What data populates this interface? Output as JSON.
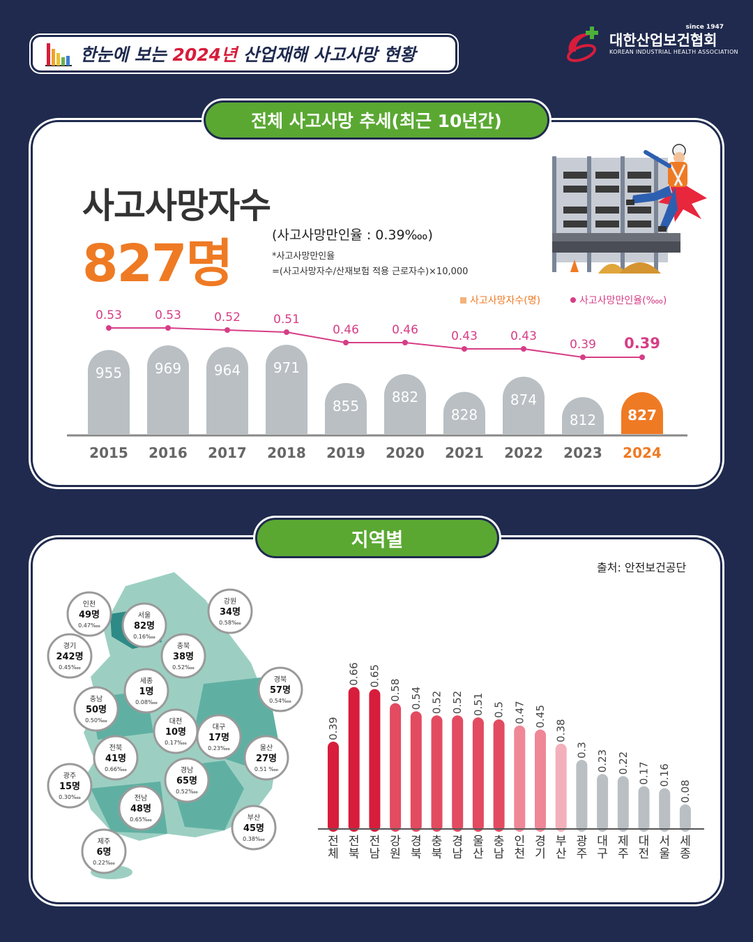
{
  "header": {
    "title_pre": "한눈에 보는 ",
    "title_year": "2024년",
    "title_post": " 산업재해 사고사망 현황",
    "logo_since": "since 1947",
    "logo_name": "대한산업보건협회",
    "logo_en": "KOREAN INDUSTRIAL HEALTH ASSOCIATION"
  },
  "section1": {
    "pill": "전체 사고사망 추세(최근 10년간)",
    "big_label": "사고사망자수",
    "big_value": "827명",
    "rate": "(사고사망만인율 : 0.39‱)",
    "note1": "*사고사망만인율",
    "note2": "=(사고사망자수/산재보험 적용 근로자수)×10,000",
    "legend_bar": "사고사망자수(명)",
    "legend_line": "사고사망만인율(‱)"
  },
  "section2": {
    "pill": "지역별",
    "source": "출처: 안전보건공단"
  },
  "colors": {
    "navy": "#1f2a4e",
    "orange": "#ef7a24",
    "gray_bar": "#b9bfc3",
    "line_pink": "#d63d86",
    "green": "#5aa832",
    "map_light": "#9ccfc2",
    "map_dark": "#2e8a86"
  },
  "chart_data": [
    {
      "type": "bar",
      "categories": [
        "2015",
        "2016",
        "2017",
        "2018",
        "2019",
        "2020",
        "2021",
        "2022",
        "2023",
        "2024"
      ],
      "series": [
        {
          "name": "사고사망자수(명)",
          "values": [
            955,
            969,
            964,
            971,
            855,
            882,
            828,
            874,
            812,
            827
          ]
        },
        {
          "name": "사고사망만인율(‱)",
          "values": [
            0.53,
            0.53,
            0.52,
            0.51,
            0.46,
            0.46,
            0.43,
            0.43,
            0.39,
            0.39
          ]
        }
      ],
      "highlight": "2024"
    },
    {
      "type": "bar",
      "categories": [
        "전체",
        "전북",
        "전남",
        "강원",
        "경북",
        "충북",
        "경남",
        "울산",
        "충남",
        "인천",
        "경기",
        "부산",
        "광주",
        "대구",
        "제주",
        "대전",
        "서울",
        "세종"
      ],
      "values": [
        0.39,
        0.66,
        0.65,
        0.58,
        0.54,
        0.52,
        0.52,
        0.51,
        0.5,
        0.47,
        0.45,
        0.38,
        0.3,
        0.23,
        0.22,
        0.17,
        0.16,
        0.08
      ]
    },
    {
      "type": "table",
      "regions": [
        {
          "name": "인천",
          "deaths": "49명",
          "rate": "0.47‱"
        },
        {
          "name": "서울",
          "deaths": "82명",
          "rate": "0.16‱"
        },
        {
          "name": "강원",
          "deaths": "34명",
          "rate": "0.58‱"
        },
        {
          "name": "경기",
          "deaths": "242명",
          "rate": "0.45‱"
        },
        {
          "name": "충북",
          "deaths": "38명",
          "rate": "0.52‱"
        },
        {
          "name": "세종",
          "deaths": "1명",
          "rate": "0.08‱"
        },
        {
          "name": "경북",
          "deaths": "57명",
          "rate": "0.54‱"
        },
        {
          "name": "충남",
          "deaths": "50명",
          "rate": "0.50‱"
        },
        {
          "name": "대전",
          "deaths": "10명",
          "rate": "0.17‱"
        },
        {
          "name": "대구",
          "deaths": "17명",
          "rate": "0.23‱"
        },
        {
          "name": "울산",
          "deaths": "27명",
          "rate": "0.51 ‱"
        },
        {
          "name": "전북",
          "deaths": "41명",
          "rate": "0.66‱"
        },
        {
          "name": "경남",
          "deaths": "65명",
          "rate": "0.52‱"
        },
        {
          "name": "광주",
          "deaths": "15명",
          "rate": "0.30‱"
        },
        {
          "name": "전남",
          "deaths": "48명",
          "rate": "0.65‱"
        },
        {
          "name": "부산",
          "deaths": "45명",
          "rate": "0.38‱"
        },
        {
          "name": "제주",
          "deaths": "6명",
          "rate": "0.22‱"
        }
      ]
    }
  ]
}
